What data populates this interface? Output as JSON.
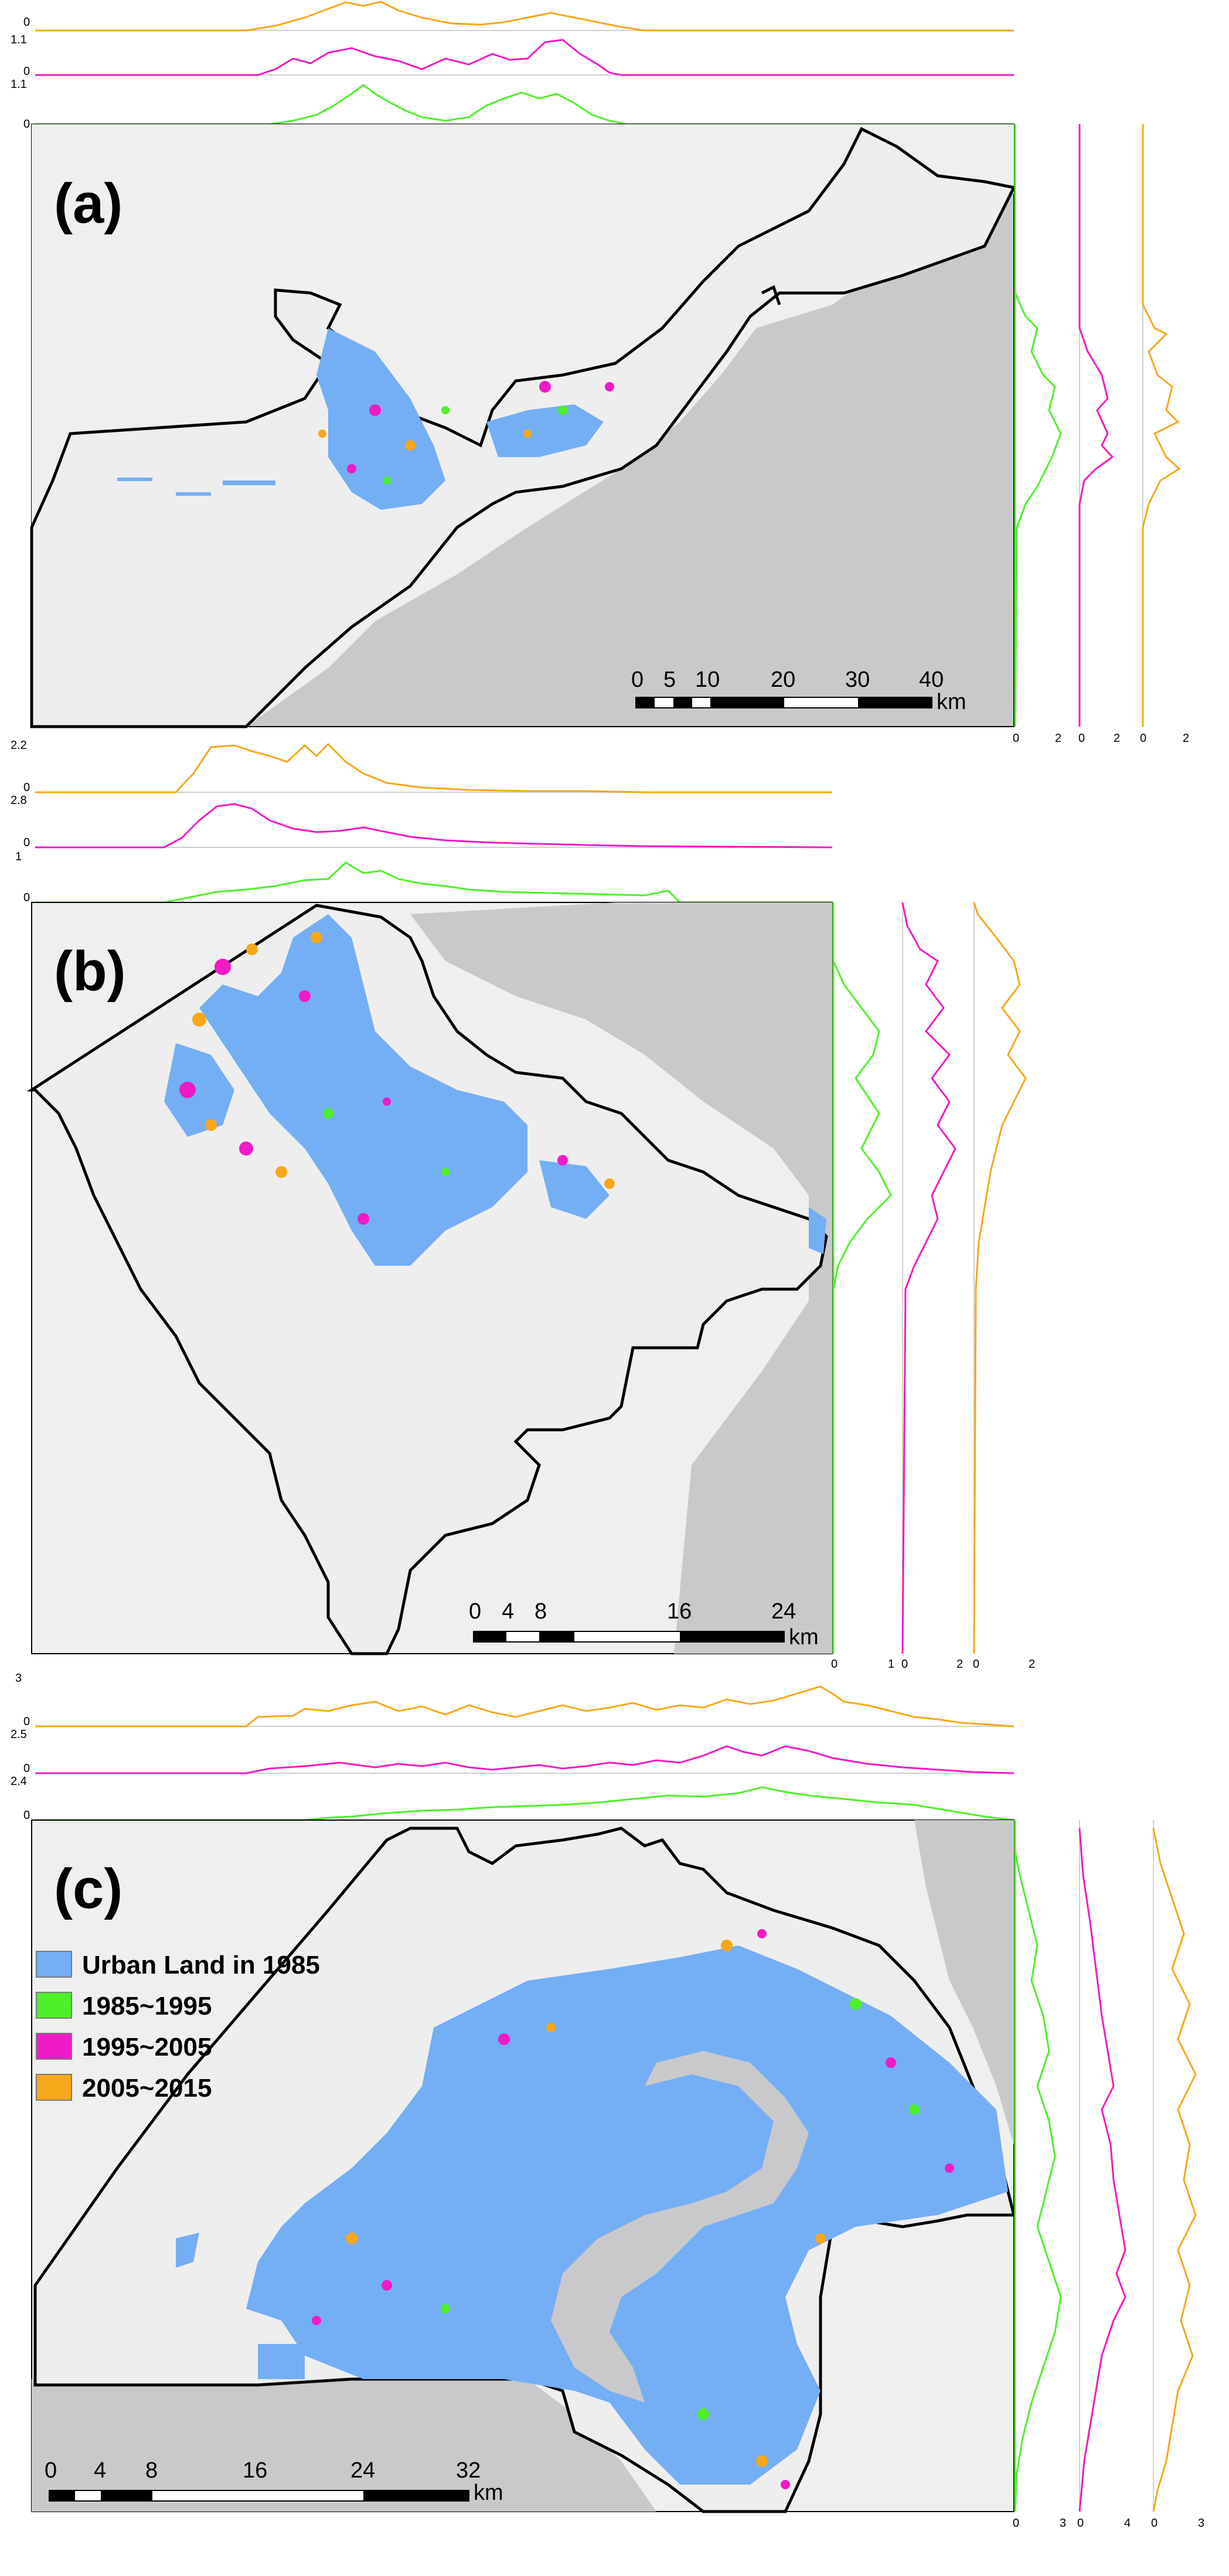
{
  "colors": {
    "urban_1985": "#74aef5",
    "p1985_1995": "#4ef029",
    "p1995_2005": "#f01ac6",
    "p2005_2015": "#f7a71a",
    "land": "#efefef",
    "water": "#c9c9cc",
    "boundary": "#000000"
  },
  "panels": [
    {
      "label": "(a)",
      "top_profiles": [
        {
          "series": "p2005_2015",
          "max_label": "",
          "zero_label": "0"
        },
        {
          "series": "p1995_2005",
          "max_label": "1.1",
          "zero_label": "0"
        },
        {
          "series": "p1985_1995",
          "max_label": "1.1",
          "zero_label": "0"
        }
      ],
      "side_profiles": [
        {
          "series": "p1985_1995",
          "ticks": [
            "0",
            "2"
          ]
        },
        {
          "series": "p1995_2005",
          "ticks": [
            "0",
            "2"
          ]
        },
        {
          "series": "p2005_2015",
          "ticks": [
            "0",
            "2"
          ]
        }
      ],
      "scalebar": {
        "ticks": [
          "0",
          "5",
          "10",
          "20",
          "30",
          "40"
        ],
        "unit": "km"
      }
    },
    {
      "label": "(b)",
      "top_profiles": [
        {
          "series": "p2005_2015",
          "max_label": "2.2",
          "zero_label": "0"
        },
        {
          "series": "p1995_2005",
          "max_label": "2.8",
          "zero_label": "0"
        },
        {
          "series": "p1985_1995",
          "max_label": "1",
          "zero_label": "0"
        }
      ],
      "side_profiles": [
        {
          "series": "p1985_1995",
          "ticks": [
            "0",
            "1"
          ]
        },
        {
          "series": "p1995_2005",
          "ticks": [
            "0",
            "2"
          ]
        },
        {
          "series": "p2005_2015",
          "ticks": [
            "0",
            "2"
          ]
        }
      ],
      "scalebar": {
        "ticks": [
          "0",
          "4",
          "8",
          "16",
          "24"
        ],
        "unit": "km"
      }
    },
    {
      "label": "(c)",
      "top_profiles": [
        {
          "series": "p2005_2015",
          "max_label": "3",
          "zero_label": "0"
        },
        {
          "series": "p1995_2005",
          "max_label": "2.5",
          "zero_label": "0"
        },
        {
          "series": "p1985_1995",
          "max_label": "2.4",
          "zero_label": "0"
        }
      ],
      "side_profiles": [
        {
          "series": "p1985_1995",
          "ticks": [
            "0",
            "3"
          ]
        },
        {
          "series": "p1995_2005",
          "ticks": [
            "0",
            "4"
          ]
        },
        {
          "series": "p2005_2015",
          "ticks": [
            "0",
            "3"
          ]
        }
      ],
      "scalebar": {
        "ticks": [
          "0",
          "4",
          "8",
          "16",
          "24",
          "32"
        ],
        "unit": "km"
      }
    }
  ],
  "legend": {
    "items": [
      {
        "key": "urban_1985",
        "label": "Urban Land in 1985"
      },
      {
        "key": "p1985_1995",
        "label": "1985~1995"
      },
      {
        "key": "p1995_2005",
        "label": "1995~2005"
      },
      {
        "key": "p2005_2015",
        "label": "2005~2015"
      }
    ]
  }
}
